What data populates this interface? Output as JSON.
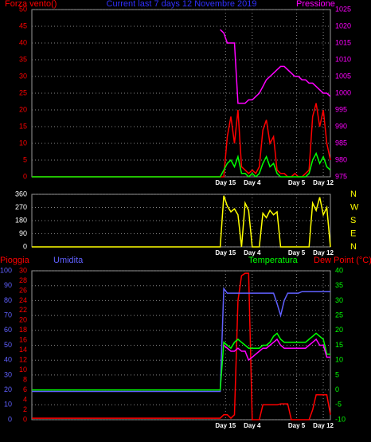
{
  "chart_data": [
    {
      "type": "line",
      "title": "Current last 7 days 12 Novembre 2019",
      "x": [
        0,
        106,
        108,
        110,
        112,
        114,
        116,
        118,
        120,
        122,
        124,
        126,
        128,
        130,
        132,
        134,
        136,
        138,
        140,
        142,
        144,
        146,
        148,
        150,
        152,
        154,
        156,
        158,
        160,
        162,
        164,
        166,
        168
      ],
      "xlim": [
        0,
        168
      ],
      "xticks": [
        {
          "value": 109,
          "label": "Day 15"
        },
        {
          "value": 124,
          "label": "Day 4"
        },
        {
          "value": 149,
          "label": "Day 5"
        },
        {
          "value": 164,
          "label": "Day 12"
        }
      ],
      "ylim": [
        0,
        50
      ],
      "yticks": [
        0,
        5,
        10,
        15,
        20,
        25,
        30,
        35,
        40,
        45,
        50
      ],
      "y2lim": [
        975,
        1025
      ],
      "y2ticks": [
        975,
        980,
        985,
        990,
        995,
        1000,
        1005,
        1010,
        1015,
        1020,
        1025
      ],
      "grid": true,
      "series": [
        {
          "name": "Forza vento()",
          "color": "#ff0000",
          "values": [
            0,
            0,
            0,
            12,
            18,
            10,
            20,
            3,
            2,
            1,
            2,
            1,
            3,
            14,
            17,
            10,
            12,
            2,
            1,
            1,
            0,
            0,
            1,
            0,
            0,
            1,
            2,
            18,
            22,
            15,
            20,
            10,
            5
          ]
        },
        {
          "color": "#00ff00",
          "values": [
            0,
            0,
            2,
            4,
            5,
            3,
            6,
            1,
            1,
            0,
            1,
            0,
            1,
            4,
            6,
            3,
            4,
            1,
            0,
            0,
            0,
            0,
            0,
            0,
            0,
            0,
            1,
            5,
            7,
            4,
            6,
            3,
            2
          ]
        },
        {
          "name": "Pressione",
          "color": "#ff00ff",
          "axis": "y2",
          "values": [
            null,
            1019,
            1018,
            1015,
            1015,
            1015,
            997,
            997,
            997,
            998,
            998,
            999,
            1000,
            1002,
            1004,
            1005,
            1006,
            1007,
            1008,
            1008,
            1007,
            1006,
            1005,
            1005,
            1004,
            1004,
            1003,
            1003,
            1002,
            1001,
            1000,
            1000,
            999
          ]
        }
      ]
    },
    {
      "type": "line",
      "x": [
        0,
        106,
        108,
        110,
        112,
        114,
        116,
        118,
        120,
        122,
        124,
        126,
        128,
        130,
        132,
        134,
        136,
        138,
        140,
        142,
        144,
        146,
        148,
        150,
        152,
        154,
        156,
        158,
        160,
        162,
        164,
        166,
        168
      ],
      "xlim": [
        0,
        168
      ],
      "xticks": [
        {
          "value": 109,
          "label": "Day 15"
        },
        {
          "value": 124,
          "label": "Day 4"
        },
        {
          "value": 149,
          "label": "Day 5"
        },
        {
          "value": 164,
          "label": "Day 12"
        }
      ],
      "ylim": [
        0,
        360
      ],
      "yticks": [
        0,
        90,
        180,
        270,
        360
      ],
      "y2lim": [
        0,
        360
      ],
      "y2ticks": [
        {
          "value": 360,
          "label": "N"
        },
        {
          "value": 270,
          "label": "W"
        },
        {
          "value": 180,
          "label": "S"
        },
        {
          "value": 90,
          "label": "E"
        },
        {
          "value": 0,
          "label": "N"
        }
      ],
      "grid": true,
      "series": [
        {
          "color": "#ffff00",
          "values": [
            0,
            0,
            350,
            280,
            240,
            260,
            220,
            0,
            300,
            250,
            0,
            0,
            0,
            230,
            200,
            250,
            220,
            240,
            0,
            0,
            0,
            0,
            0,
            0,
            0,
            0,
            0,
            300,
            250,
            340,
            220,
            270,
            0
          ]
        }
      ]
    },
    {
      "type": "line",
      "x": [
        0,
        106,
        108,
        110,
        112,
        114,
        116,
        118,
        120,
        122,
        124,
        126,
        128,
        130,
        132,
        134,
        136,
        138,
        140,
        142,
        144,
        146,
        148,
        150,
        152,
        154,
        156,
        158,
        160,
        162,
        164,
        166,
        168
      ],
      "xlim": [
        0,
        168
      ],
      "xticks": [
        {
          "value": 109,
          "label": "Day 15"
        },
        {
          "value": 124,
          "label": "Day 4"
        },
        {
          "value": 149,
          "label": "Day 5"
        },
        {
          "value": 164,
          "label": "Day 12"
        }
      ],
      "ylim": [
        0,
        30
      ],
      "yticks": [
        0,
        2,
        4,
        6,
        8,
        10,
        12,
        14,
        16,
        18,
        20,
        22,
        24,
        26,
        28,
        30
      ],
      "y3lim": [
        0,
        100
      ],
      "y3ticks": [
        0,
        10,
        20,
        30,
        40,
        50,
        60,
        70,
        80,
        90,
        100
      ],
      "y2lim": [
        -10,
        40
      ],
      "y2ticks": [
        -10,
        -5,
        0,
        5,
        10,
        15,
        20,
        25,
        30,
        35,
        40
      ],
      "grid": true,
      "series": [
        {
          "name": "Pioggia",
          "color": "#ff0000",
          "values": [
            0.3,
            0.3,
            1,
            1,
            0.3,
            1,
            24,
            29,
            29.5,
            29.5,
            0,
            0,
            0,
            3,
            3,
            3,
            3,
            3,
            3.2,
            3.2,
            3.2,
            0,
            0,
            0,
            0,
            0,
            0,
            2,
            5,
            5,
            5,
            5,
            1
          ]
        },
        {
          "name": "Umidita",
          "color": "#6060ff",
          "axis": "y3",
          "values": [
            19,
            19,
            88,
            85,
            85,
            85,
            85,
            85,
            85,
            85,
            85,
            85,
            85,
            85,
            85,
            85,
            85,
            78,
            70,
            80,
            85,
            85,
            85,
            85,
            86,
            86,
            86,
            86,
            86,
            86,
            86,
            86,
            86
          ]
        },
        {
          "name": "Temperatura",
          "color": "#00ff00",
          "axis": "y2",
          "values": [
            0,
            0,
            16,
            15,
            14,
            16,
            17,
            16,
            15,
            14,
            14,
            14,
            14,
            15,
            15,
            16,
            18,
            19,
            17,
            16,
            16,
            16,
            16,
            16,
            16,
            16,
            17,
            18,
            19,
            18,
            17,
            12,
            12
          ]
        },
        {
          "name": "Dew Point (°C)",
          "color": "#ff00ff",
          "axis": "y2",
          "values": [
            null,
            null,
            15,
            14,
            13,
            13,
            14,
            13,
            13,
            10,
            11,
            12,
            13,
            14,
            14,
            15,
            16,
            17,
            15,
            14,
            14,
            14,
            14,
            14,
            14,
            14,
            15,
            16,
            17,
            15,
            15,
            11,
            11
          ]
        }
      ]
    }
  ]
}
